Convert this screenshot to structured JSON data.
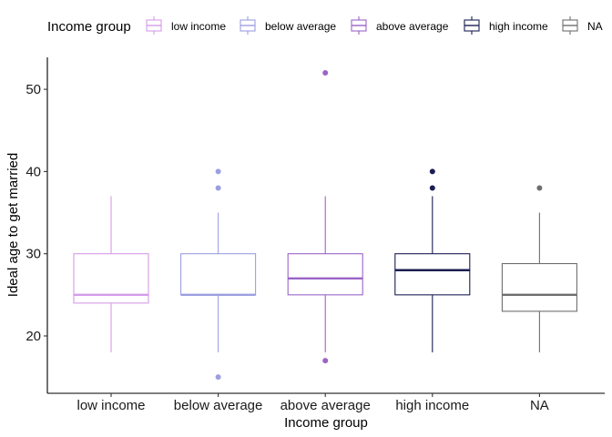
{
  "chart_data": {
    "type": "boxplot",
    "title": "",
    "xlabel": "Income group",
    "ylabel": "Ideal age to get married",
    "ylim": [
      13,
      54
    ],
    "yticks": [
      20,
      30,
      40,
      50
    ],
    "grid": false,
    "legend": {
      "title": "Income group",
      "position": "top"
    },
    "categories": [
      "low income",
      "below average",
      "above average",
      "high income",
      "NA"
    ],
    "series": [
      {
        "name": "low income",
        "color": "#d59be8",
        "whisker_low": 18,
        "q1": 24,
        "median": 25,
        "q3": 30,
        "whisker_high": 37,
        "outliers": []
      },
      {
        "name": "below average",
        "color": "#9c9fe0",
        "whisker_low": 18,
        "q1": 25,
        "median": 25,
        "q3": 30,
        "whisker_high": 35,
        "outliers": [
          15,
          38,
          40
        ]
      },
      {
        "name": "above average",
        "color": "#9a64c8",
        "whisker_low": 18,
        "q1": 25,
        "median": 27,
        "q3": 30,
        "whisker_high": 37,
        "outliers": [
          17,
          52
        ]
      },
      {
        "name": "high income",
        "color": "#1b1e52",
        "whisker_low": 18,
        "q1": 25,
        "median": 28,
        "q3": 30,
        "whisker_high": 37,
        "outliers": [
          38,
          40
        ]
      },
      {
        "name": "NA",
        "color": "#6e6e6e",
        "whisker_low": 18,
        "q1": 23,
        "median": 25,
        "q3": 28.8,
        "whisker_high": 35,
        "outliers": [
          38
        ]
      }
    ]
  }
}
